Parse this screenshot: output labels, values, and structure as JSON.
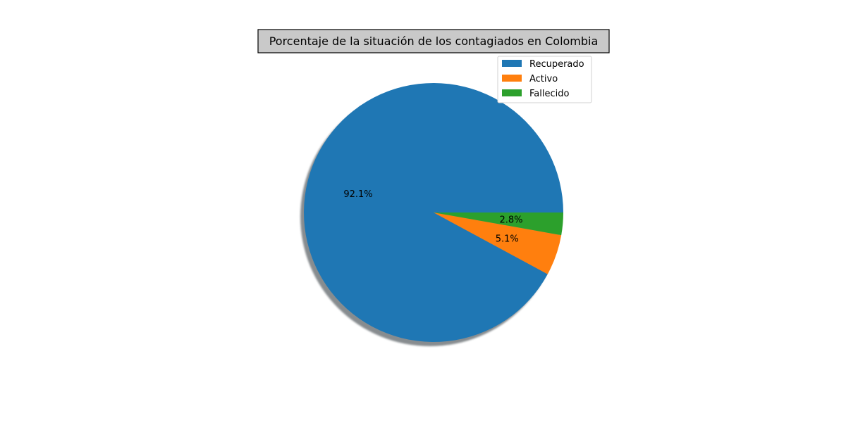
{
  "chart_data": {
    "type": "pie",
    "title": "Porcentaje de la situación de los contagiados en Colombia",
    "labels": [
      "Recuperado",
      "Activo",
      "Fallecido"
    ],
    "values": [
      92.1,
      5.1,
      2.8
    ],
    "autopct_labels": [
      "92.1%",
      "5.1%",
      "2.8%"
    ],
    "colors": [
      "#1f77b4",
      "#ff7f0e",
      "#2ca02c"
    ],
    "shadow": true,
    "legend": "top-right"
  }
}
